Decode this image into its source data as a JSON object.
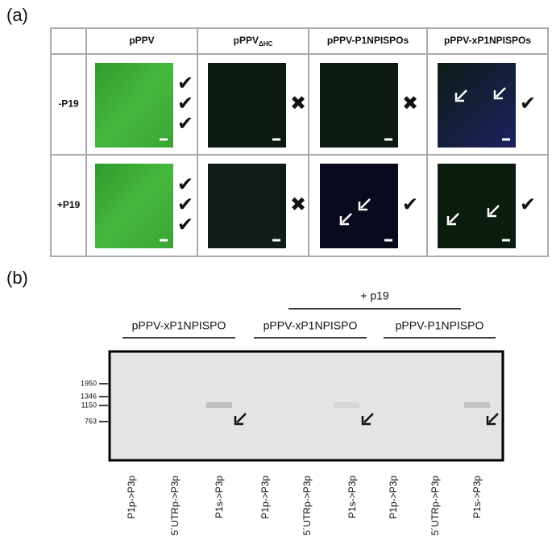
{
  "panel_a": {
    "label": "(a)",
    "columns": [
      {
        "text": "pPPV"
      },
      {
        "text": "pPPV",
        "sub": "ΔHC"
      },
      {
        "text": "pPPV-P1NPISPOs"
      },
      {
        "text": "pPPV-xP1NPISPOs"
      }
    ],
    "rows": [
      {
        "label": "-P19",
        "results": [
          [
            "✔",
            "✔",
            "✔"
          ],
          [
            "✖"
          ],
          [
            "✖"
          ],
          [
            "✔"
          ]
        ]
      },
      {
        "label": "+P19",
        "results": [
          [
            "✔",
            "✔",
            "✔"
          ],
          [
            "✖"
          ],
          [
            "✔"
          ],
          [
            "✔"
          ]
        ]
      }
    ]
  },
  "panel_b": {
    "label": "(b)",
    "top_group": "+ p19",
    "groups": [
      "pPPV-xP1NPISPO",
      "pPPV-xP1NPISPO",
      "pPPV-P1NPISPO"
    ],
    "markers": [
      "1950",
      "1346",
      "1150",
      "763"
    ],
    "lanes": [
      "P1p->P3p",
      "5´UTRp->P3p",
      "P1s->P3p",
      "P1p->P3p",
      "5´UTRp->P3p",
      "P1s->P3p",
      "P1p->P3p",
      "5´UTRp->P3p",
      "P1s->P3p"
    ]
  }
}
